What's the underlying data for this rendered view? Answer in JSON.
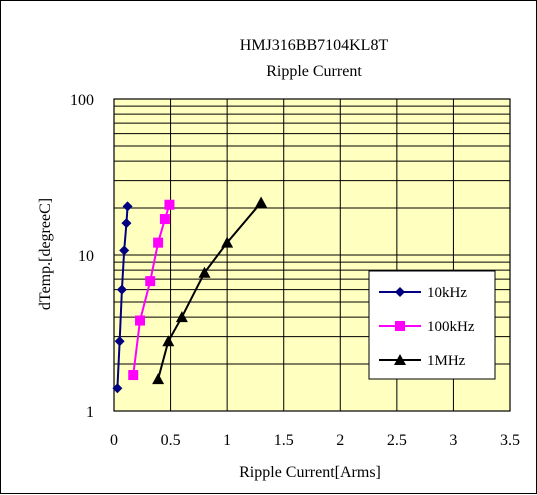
{
  "chart_data": {
    "type": "line",
    "title": "HMJ316BB7104KL8T",
    "subtitle": "Ripple Current",
    "xlabel": "Ripple Current[Arms]",
    "ylabel": "dTemp.[degreeC]",
    "xlim": [
      0,
      3.5
    ],
    "ylim": [
      1,
      100
    ],
    "yscale": "log",
    "grid": true,
    "legend_position": "right",
    "plot_background": "#FFFFC0",
    "x_tick_labels": [
      "0",
      "0.5",
      "1",
      "1.5",
      "2",
      "2.5",
      "3",
      "3.5"
    ],
    "y_tick_labels": [
      "1",
      "10",
      "100"
    ],
    "series": [
      {
        "name": "10kHz",
        "color": "#000080",
        "marker": "diamond",
        "x": [
          0.03,
          0.05,
          0.07,
          0.09,
          0.11,
          0.12
        ],
        "y": [
          1.4,
          2.8,
          6.0,
          10.7,
          16.0,
          20.5
        ]
      },
      {
        "name": "100kHz",
        "color": "#FF00FF",
        "marker": "square",
        "x": [
          0.17,
          0.23,
          0.32,
          0.39,
          0.45,
          0.49
        ],
        "y": [
          1.7,
          3.8,
          6.8,
          12.0,
          17.0,
          21.0
        ]
      },
      {
        "name": "1MHz",
        "color": "#000000",
        "marker": "triangle",
        "x": [
          0.39,
          0.48,
          0.6,
          0.8,
          1.0,
          1.3
        ],
        "y": [
          1.6,
          2.8,
          4.0,
          7.7,
          12.0,
          21.7
        ]
      }
    ]
  }
}
